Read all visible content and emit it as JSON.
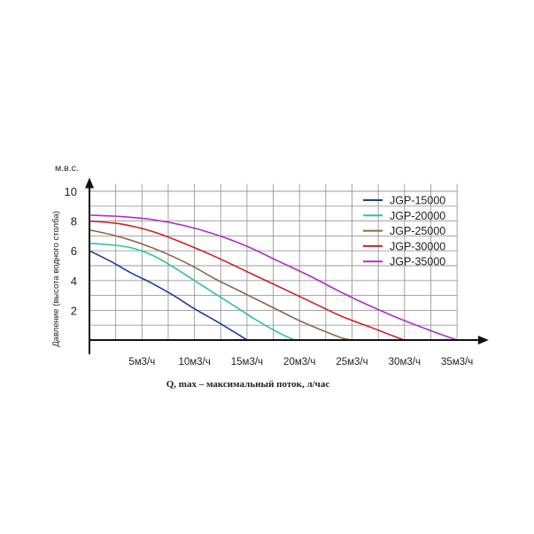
{
  "chart_data": {
    "type": "line",
    "y_unit_label": "м.в.с.",
    "ylabel": "Давление (высота водного столба)",
    "xlabel": "Q, max – максимальный поток, л/час",
    "xlim": [
      0,
      37
    ],
    "ylim": [
      0,
      10.8
    ],
    "x_ticks": [
      5,
      10,
      15,
      20,
      25,
      30,
      35
    ],
    "x_tick_labels": [
      "5м3/ч",
      "10м3/ч",
      "15м3/ч",
      "20м3/ч",
      "25м3/ч",
      "30м3/ч",
      "35м3/ч"
    ],
    "y_ticks": [
      2,
      4,
      6,
      8,
      10
    ],
    "y_tick_labels": [
      "2",
      "4",
      "6",
      "8",
      "10"
    ],
    "grid_x_step": 2.5,
    "grid_y_step": 1,
    "grid": true,
    "legend_position": "top-right",
    "series": [
      {
        "name": "JGP-15000",
        "color": "#1f3d99",
        "x": [
          0,
          2,
          4,
          6,
          8,
          10,
          12,
          14,
          15
        ],
        "y": [
          6.0,
          5.3,
          4.5,
          3.8,
          3.0,
          2.1,
          1.3,
          0.45,
          0
        ]
      },
      {
        "name": "JGP-20000",
        "color": "#2ec4a0",
        "x": [
          0,
          2,
          4,
          6,
          8,
          10,
          12,
          14,
          16,
          18,
          19.5
        ],
        "y": [
          6.5,
          6.4,
          6.2,
          5.7,
          4.9,
          4.0,
          3.1,
          2.2,
          1.3,
          0.5,
          0
        ]
      },
      {
        "name": "JGP-25000",
        "color": "#8b6a4a",
        "x": [
          0,
          2,
          4,
          6,
          8,
          10,
          12,
          14,
          16,
          18,
          20,
          22,
          24,
          25
        ],
        "y": [
          7.4,
          7.1,
          6.7,
          6.2,
          5.6,
          4.9,
          4.1,
          3.4,
          2.7,
          2.0,
          1.3,
          0.7,
          0.15,
          0
        ]
      },
      {
        "name": "JGP-30000",
        "color": "#d11f2a",
        "x": [
          0,
          3,
          6,
          9,
          12,
          15,
          18,
          21,
          24,
          27,
          29,
          30
        ],
        "y": [
          8.0,
          7.8,
          7.3,
          6.5,
          5.6,
          4.6,
          3.6,
          2.6,
          1.6,
          0.8,
          0.25,
          0
        ]
      },
      {
        "name": "JGP-35000",
        "color": "#b12cc8",
        "x": [
          0,
          3,
          6,
          9,
          12,
          15,
          18,
          21,
          24,
          27,
          30,
          33,
          35
        ],
        "y": [
          8.4,
          8.3,
          8.1,
          7.7,
          7.1,
          6.3,
          5.3,
          4.3,
          3.2,
          2.2,
          1.3,
          0.5,
          0
        ]
      }
    ]
  }
}
